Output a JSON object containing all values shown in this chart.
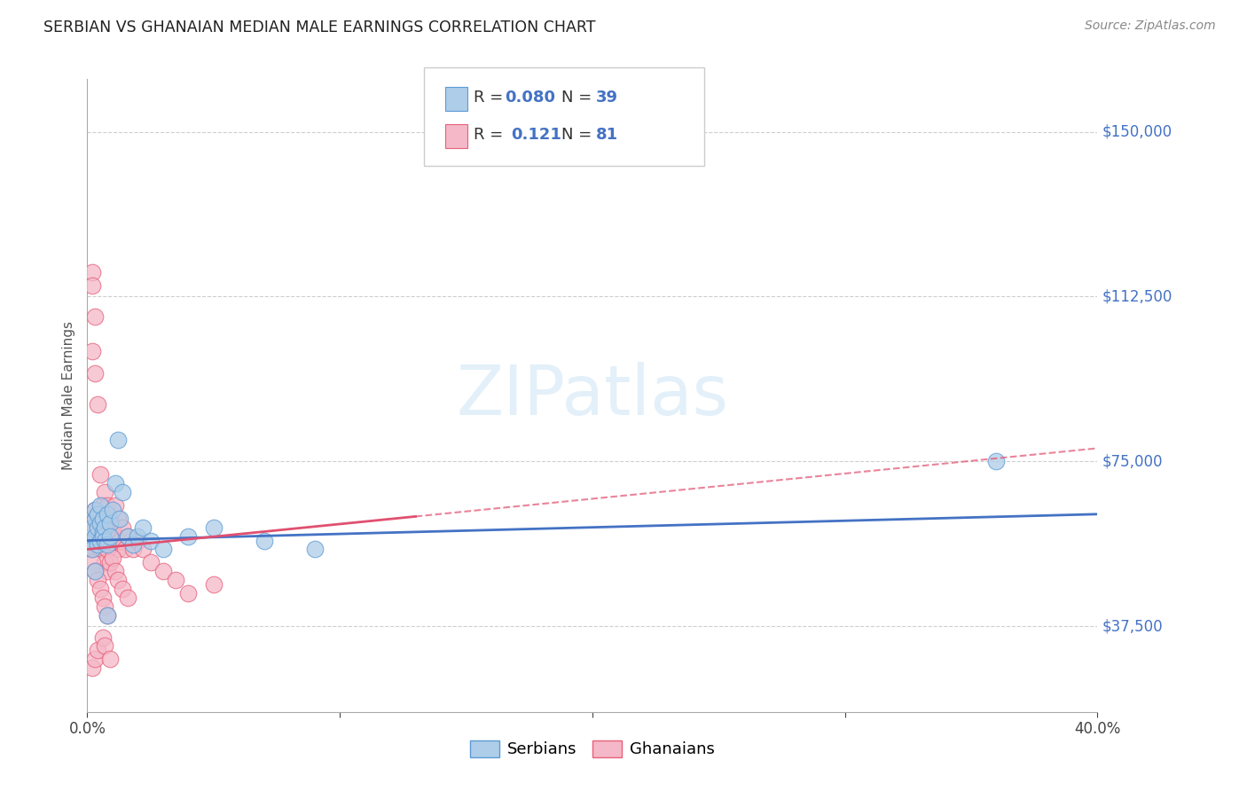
{
  "title": "SERBIAN VS GHANAIAN MEDIAN MALE EARNINGS CORRELATION CHART",
  "source": "Source: ZipAtlas.com",
  "ylabel": "Median Male Earnings",
  "watermark": "ZIPatlas",
  "ytick_labels": [
    "$37,500",
    "$75,000",
    "$112,500",
    "$150,000"
  ],
  "ytick_values": [
    37500,
    75000,
    112500,
    150000
  ],
  "ylim": [
    18000,
    162000
  ],
  "xlim": [
    0.0,
    0.4
  ],
  "serbians_R": "0.080",
  "serbians_N": "39",
  "ghanaians_R": "0.121",
  "ghanaians_N": "81",
  "serbian_color": "#aecde8",
  "ghanaian_color": "#f4b8c8",
  "serbian_edge_color": "#5b9bd5",
  "ghanaian_edge_color": "#e8607a",
  "serbian_line_color": "#4472c4",
  "ghanaian_line_color": "#e05070",
  "background_color": "#ffffff",
  "grid_color": "#bbbbbb",
  "title_color": "#222222",
  "right_label_color": "#4472c4",
  "serbians_x": [
    0.001,
    0.002,
    0.002,
    0.003,
    0.003,
    0.003,
    0.004,
    0.004,
    0.004,
    0.005,
    0.005,
    0.005,
    0.006,
    0.006,
    0.006,
    0.007,
    0.007,
    0.008,
    0.008,
    0.009,
    0.009,
    0.01,
    0.011,
    0.012,
    0.013,
    0.014,
    0.016,
    0.018,
    0.02,
    0.022,
    0.025,
    0.03,
    0.04,
    0.05,
    0.07,
    0.09,
    0.36,
    0.003,
    0.008
  ],
  "serbians_y": [
    57000,
    60000,
    55000,
    58000,
    62000,
    64000,
    56000,
    60000,
    63000,
    57000,
    61000,
    65000,
    59000,
    62000,
    58000,
    60000,
    57000,
    63000,
    56000,
    61000,
    58000,
    64000,
    70000,
    80000,
    62000,
    68000,
    58000,
    56000,
    58000,
    60000,
    57000,
    55000,
    58000,
    60000,
    57000,
    55000,
    75000,
    50000,
    40000
  ],
  "ghanaians_x": [
    0.001,
    0.001,
    0.002,
    0.002,
    0.002,
    0.002,
    0.003,
    0.003,
    0.003,
    0.003,
    0.003,
    0.004,
    0.004,
    0.004,
    0.004,
    0.005,
    0.005,
    0.005,
    0.005,
    0.006,
    0.006,
    0.006,
    0.006,
    0.007,
    0.007,
    0.007,
    0.007,
    0.008,
    0.008,
    0.008,
    0.009,
    0.009,
    0.009,
    0.01,
    0.01,
    0.011,
    0.011,
    0.012,
    0.012,
    0.013,
    0.014,
    0.015,
    0.016,
    0.018,
    0.02,
    0.022,
    0.025,
    0.03,
    0.035,
    0.04,
    0.05,
    0.002,
    0.003,
    0.003,
    0.004,
    0.005,
    0.005,
    0.006,
    0.007,
    0.008,
    0.008,
    0.009,
    0.01,
    0.011,
    0.012,
    0.014,
    0.016,
    0.002,
    0.003,
    0.004,
    0.006,
    0.007,
    0.009,
    0.001,
    0.002,
    0.003,
    0.004,
    0.005,
    0.006,
    0.007,
    0.008
  ],
  "ghanaians_y": [
    62000,
    57000,
    55000,
    58000,
    118000,
    115000,
    60000,
    64000,
    57000,
    108000,
    95000,
    62000,
    56000,
    60000,
    88000,
    58000,
    63000,
    57000,
    72000,
    60000,
    65000,
    55000,
    58000,
    62000,
    57000,
    68000,
    60000,
    63000,
    55000,
    65000,
    57000,
    62000,
    58000,
    60000,
    57000,
    65000,
    58000,
    62000,
    55000,
    57000,
    60000,
    55000,
    58000,
    55000,
    57000,
    55000,
    52000,
    50000,
    48000,
    45000,
    47000,
    100000,
    56000,
    62000,
    58000,
    60000,
    55000,
    57000,
    52000,
    50000,
    55000,
    52000,
    53000,
    50000,
    48000,
    46000,
    44000,
    28000,
    30000,
    32000,
    35000,
    33000,
    30000,
    55000,
    52000,
    50000,
    48000,
    46000,
    44000,
    42000,
    40000
  ]
}
